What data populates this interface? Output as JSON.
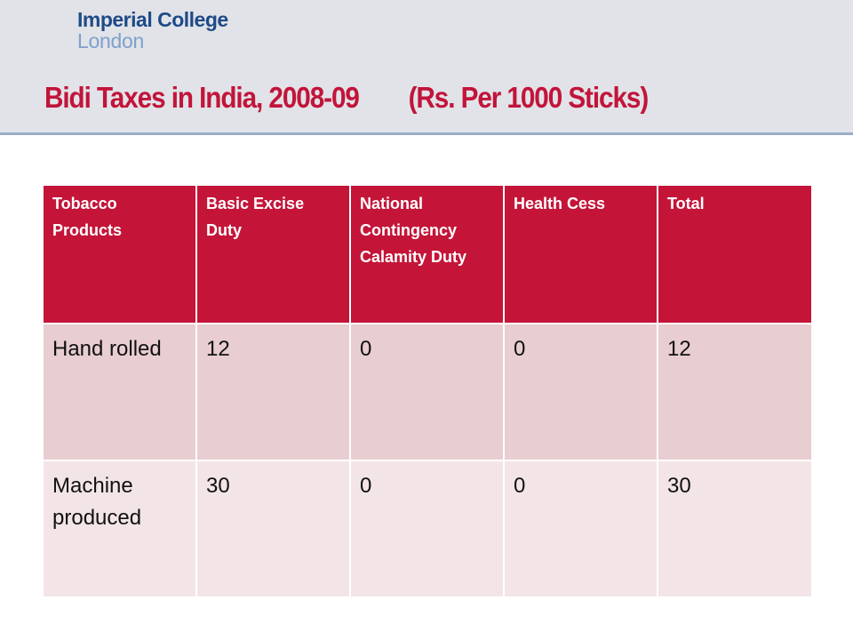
{
  "logo": {
    "line1": "Imperial College",
    "line2": "London"
  },
  "slide": {
    "title_main": "Bidi Taxes in India, 2008-09",
    "title_unit": "(Rs. Per 1000 Sticks)"
  },
  "table": {
    "headers": [
      "Tobacco Products",
      "Basic Excise Duty",
      "National Contingency Calamity Duty",
      "Health Cess",
      "Total"
    ],
    "rows": [
      [
        "Hand rolled",
        "12",
        "0",
        "0",
        "12"
      ],
      [
        "Machine produced",
        "30",
        "0",
        "0",
        "30"
      ]
    ]
  },
  "colors": {
    "header_fill": "#c41539",
    "title_text": "#c2143a",
    "row_odd_fill": "#e8cdd1",
    "row_even_fill": "#f3e5e7",
    "logo_dark": "#1f4a87",
    "logo_light": "#7ea0cc",
    "header_band": "#e1e3e8"
  }
}
